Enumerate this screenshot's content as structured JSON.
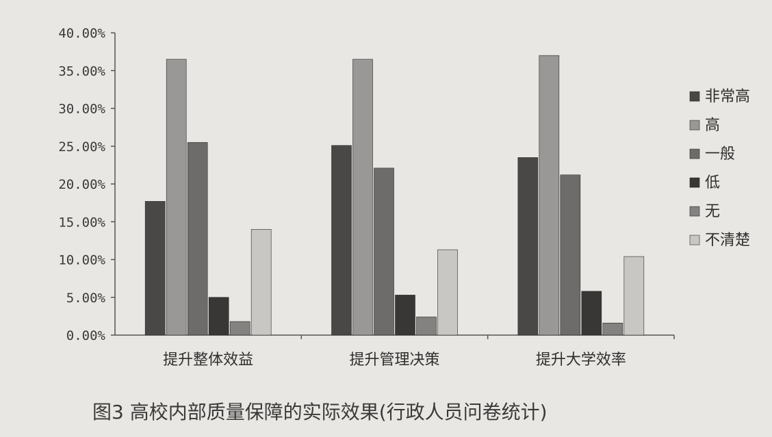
{
  "caption": "图3   高校内部质量保障的实际效果(行政人员问卷统计)",
  "chart_data": {
    "type": "bar",
    "title": "",
    "xlabel": "",
    "ylabel": "",
    "ylim": [
      0,
      0.4
    ],
    "yticks": [
      "0.00%",
      "5.00%",
      "10.00%",
      "15.00%",
      "20.00%",
      "25.00%",
      "30.00%",
      "35.00%",
      "40.00%"
    ],
    "categories": [
      "提升整体效益",
      "提升管理决策",
      "提升大学效率"
    ],
    "series": [
      {
        "name": "非常高",
        "values": [
          0.177,
          0.251,
          0.235
        ],
        "color": "#4a4846"
      },
      {
        "name": "高",
        "values": [
          0.365,
          0.365,
          0.37
        ],
        "color": "#9a9896"
      },
      {
        "name": "一般",
        "values": [
          0.255,
          0.221,
          0.212
        ],
        "color": "#6e6c6a"
      },
      {
        "name": "低",
        "values": [
          0.05,
          0.053,
          0.058
        ],
        "color": "#393735"
      },
      {
        "name": "无",
        "values": [
          0.018,
          0.024,
          0.016
        ],
        "color": "#848280"
      },
      {
        "name": "不清楚",
        "values": [
          0.14,
          0.113,
          0.104
        ],
        "color": "#c9c7c4"
      }
    ],
    "legend_position": "right",
    "grid": false
  }
}
